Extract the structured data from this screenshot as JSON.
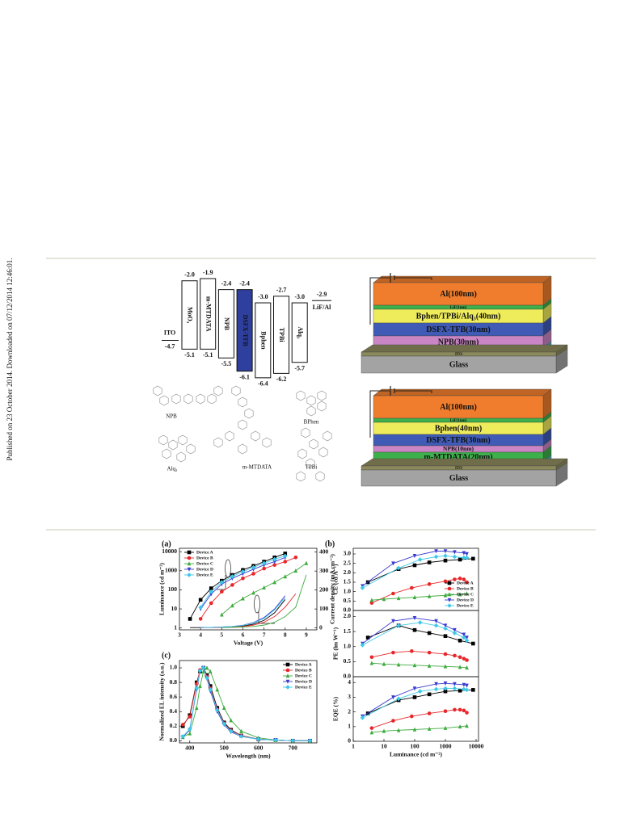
{
  "side_note": "Published on 23 October 2014. Downloaded on 07/12/2014 12:46:01.",
  "figure1": {
    "energy_diagram": {
      "anode": {
        "name": "ITO",
        "level": "-4.7"
      },
      "layers": [
        {
          "name": "MoO₃",
          "lumo": "-2.0",
          "homo": "-5.1"
        },
        {
          "name": "m-MTDATA",
          "lumo": "-1.9",
          "homo": "-5.1"
        },
        {
          "name": "NPB",
          "lumo": "-2.4",
          "homo": "-5.5"
        },
        {
          "name": "DSFX-TFB",
          "lumo": "-2.4",
          "homo": "-6.1",
          "color": "#2e3f9e"
        },
        {
          "name": "Bphen",
          "lumo": "-3.0",
          "homo": "-6.4"
        },
        {
          "name": "TPBi",
          "lumo": "-2.7",
          "homo": "-6.2"
        },
        {
          "name": "Alq₃",
          "lumo": "-3.0",
          "homo": "-5.7"
        }
      ],
      "cathode": {
        "name": "LiF/Al",
        "level": "-2.9"
      }
    },
    "devices": [
      {
        "layers": [
          {
            "label": "Al(100nm)",
            "color": "#ef7d2d"
          },
          {
            "label": "LiF(1nm)",
            "color": "#3cb04a"
          },
          {
            "label": "Bphen/TPBi/Alq₃(40nm)",
            "color": "#efec5c"
          },
          {
            "label": "DSFX-TFB(30nm)",
            "color": "#3f5bb5"
          },
          {
            "label": "NPB(30nm)",
            "color": "#c985c4"
          },
          {
            "label": "MoO₃(2nm)",
            "color": "#45c0e6"
          },
          {
            "label": "ITO",
            "color": "#8c8a5c"
          },
          {
            "label": "Glass",
            "color": "#a3a3a3"
          }
        ]
      },
      {
        "layers": [
          {
            "label": "Al(100nm)",
            "color": "#ef7d2d"
          },
          {
            "label": "LiF(1nm)",
            "color": "#3cb04a"
          },
          {
            "label": "Bphen(40nm)",
            "color": "#efec5c"
          },
          {
            "label": "DSFX-TFB(30nm)",
            "color": "#3f5bb5"
          },
          {
            "label": "NPB(10nm)",
            "color": "#c985c4"
          },
          {
            "label": "m-MTDATA(20nm)",
            "color": "#3cb04a"
          },
          {
            "label": "MoO₃(2nm)",
            "color": "#45c0e6"
          },
          {
            "label": "ITO",
            "color": "#8c8a5c"
          },
          {
            "label": "Glass",
            "color": "#a3a3a3"
          }
        ]
      }
    ],
    "molecules": [
      "NPB",
      "BPhen",
      "m-MTDATA",
      "Alq₃",
      "TPBi"
    ]
  },
  "chart_data": [
    {
      "type": "line",
      "panel": "(a)",
      "xlabel": "Voltage (V)",
      "ylabel": "Luminance (cd m⁻²)",
      "y2label": "Current density (mA cm⁻²)",
      "xlim": [
        3,
        9.5
      ],
      "xticks": [
        3,
        4,
        5,
        6,
        7,
        8,
        9
      ],
      "ylim": [
        0.8,
        15000
      ],
      "ylog": true,
      "yticks": [
        1,
        10,
        100,
        1000,
        10000
      ],
      "y2lim": [
        -10,
        420
      ],
      "y2ticks": [
        0,
        100,
        200,
        300,
        400
      ],
      "legend": "upper left",
      "x": [
        3.5,
        4,
        4.5,
        5,
        5.5,
        6,
        6.5,
        7,
        7.5,
        8,
        8.5,
        9
      ],
      "series": [
        {
          "name": "Device A",
          "color": "#000000",
          "marker": "square",
          "values": [
            3,
            30,
            120,
            300,
            600,
            1100,
            1800,
            3000,
            5000,
            8000,
            null,
            null
          ]
        },
        {
          "name": "Device B",
          "color": "#e8262a",
          "marker": "circle",
          "values": [
            null,
            3,
            20,
            80,
            180,
            400,
            700,
            1300,
            2000,
            3000,
            5000,
            null
          ]
        },
        {
          "name": "Device C",
          "color": "#3dab3d",
          "marker": "triangle-up",
          "values": [
            null,
            null,
            null,
            5,
            15,
            35,
            70,
            130,
            250,
            500,
            1000,
            2500
          ]
        },
        {
          "name": "Device D",
          "color": "#3b3bd0",
          "marker": "triangle-down",
          "values": [
            null,
            10,
            60,
            200,
            400,
            700,
            1200,
            2000,
            3000,
            5000,
            null,
            null
          ]
        },
        {
          "name": "Device E",
          "color": "#3ec8e8",
          "marker": "diamond",
          "values": [
            null,
            12,
            80,
            250,
            500,
            900,
            1500,
            2500,
            4000,
            6000,
            null,
            null
          ]
        },
        {
          "name": "Device A",
          "color": "#000000",
          "axis": "y2",
          "values": [
            2,
            2,
            3,
            4,
            6,
            10,
            20,
            40,
            80,
            150,
            null,
            null
          ]
        },
        {
          "name": "Device B",
          "color": "#e8262a",
          "axis": "y2",
          "values": [
            null,
            2,
            2,
            3,
            5,
            8,
            15,
            30,
            60,
            110,
            180,
            null
          ]
        },
        {
          "name": "Device C",
          "color": "#3dab3d",
          "axis": "y2",
          "values": [
            null,
            null,
            null,
            2,
            3,
            5,
            8,
            15,
            30,
            60,
            110,
            280
          ]
        },
        {
          "name": "Device D",
          "color": "#3b3bd0",
          "axis": "y2",
          "values": [
            null,
            2,
            3,
            5,
            8,
            14,
            28,
            55,
            100,
            170,
            null,
            null
          ]
        },
        {
          "name": "Device E",
          "color": "#3ec8e8",
          "axis": "y2",
          "values": [
            null,
            2,
            3,
            5,
            8,
            13,
            26,
            50,
            95,
            160,
            null,
            null
          ]
        }
      ]
    },
    {
      "type": "line",
      "panel": "(b)",
      "ylabel": "CE (cd A⁻¹)",
      "xlog": true,
      "xlim": [
        1,
        12000
      ],
      "ylim": [
        0,
        3.3
      ],
      "yticks": [
        {
          "value": 0,
          "label": "0.0"
        },
        {
          "value": 0.5,
          "label": "0.5"
        },
        {
          "value": 1,
          "label": "1.0"
        },
        {
          "value": 1.5,
          "label": "1.5"
        },
        {
          "value": 2,
          "label": "2.0"
        },
        {
          "value": 2.5,
          "label": "2.5"
        },
        {
          "value": 3,
          "label": "3.0"
        }
      ],
      "legend": "lower right",
      "series": [
        {
          "name": "Device A",
          "color": "#000000",
          "marker": "square",
          "x": [
            3,
            30,
            100,
            300,
            1000,
            3000,
            8000
          ],
          "values": [
            1.5,
            2.2,
            2.4,
            2.55,
            2.65,
            2.7,
            2.75
          ]
        },
        {
          "name": "Device B",
          "color": "#e8262a",
          "marker": "circle",
          "x": [
            4,
            20,
            80,
            300,
            1000,
            2000,
            3000,
            4000,
            5000
          ],
          "values": [
            0.4,
            0.9,
            1.2,
            1.4,
            1.55,
            1.65,
            1.7,
            1.65,
            1.5
          ]
        },
        {
          "name": "Device C",
          "color": "#3dab3d",
          "marker": "triangle-up",
          "x": [
            4,
            10,
            30,
            100,
            300,
            1000,
            3000,
            5000
          ],
          "values": [
            0.55,
            0.6,
            0.65,
            0.7,
            0.75,
            0.8,
            0.85,
            0.9
          ]
        },
        {
          "name": "Device D",
          "color": "#3b3bd0",
          "marker": "triangle-down",
          "x": [
            2,
            20,
            100,
            500,
            1000,
            2000,
            4000,
            5000
          ],
          "values": [
            1.3,
            2.5,
            2.9,
            3.15,
            3.15,
            3.1,
            3.05,
            3.0
          ]
        },
        {
          "name": "Device E",
          "color": "#3ec8e8",
          "marker": "diamond",
          "x": [
            2,
            30,
            150,
            500,
            1000,
            2000,
            4000,
            5000
          ],
          "values": [
            1.2,
            2.25,
            2.7,
            2.85,
            2.9,
            2.85,
            2.8,
            2.8
          ]
        }
      ]
    },
    {
      "type": "line",
      "ylabel": "PE (lm W⁻¹)",
      "xlog": true,
      "xlim": [
        1,
        12000
      ],
      "ylim": [
        0,
        2.2
      ],
      "yticks": [
        {
          "value": 0,
          "label": "0.0"
        },
        {
          "value": 0.5,
          "label": "0.5"
        },
        {
          "value": 1,
          "label": "1.0"
        },
        {
          "value": 1.5,
          "label": "1.5"
        },
        {
          "value": 2,
          "label": "2.0"
        }
      ],
      "series": [
        {
          "name": "Device A",
          "color": "#000000",
          "marker": "square",
          "x": [
            3,
            30,
            100,
            300,
            1000,
            3000,
            8000
          ],
          "values": [
            1.3,
            1.7,
            1.55,
            1.45,
            1.35,
            1.2,
            1.1
          ]
        },
        {
          "name": "Device B",
          "color": "#e8262a",
          "marker": "circle",
          "x": [
            4,
            20,
            80,
            300,
            1000,
            2000,
            3000,
            4000,
            5000
          ],
          "values": [
            0.65,
            0.8,
            0.85,
            0.8,
            0.75,
            0.7,
            0.65,
            0.6,
            0.55
          ]
        },
        {
          "name": "Device C",
          "color": "#3dab3d",
          "marker": "triangle-up",
          "x": [
            4,
            10,
            30,
            100,
            300,
            1000,
            3000,
            5000
          ],
          "values": [
            0.45,
            0.42,
            0.4,
            0.38,
            0.36,
            0.34,
            0.32,
            0.3
          ]
        },
        {
          "name": "Device D",
          "color": "#3b3bd0",
          "marker": "triangle-down",
          "x": [
            2,
            20,
            100,
            500,
            1000,
            2000,
            4000,
            5000
          ],
          "values": [
            1.1,
            1.85,
            1.95,
            1.85,
            1.7,
            1.55,
            1.4,
            1.3
          ]
        },
        {
          "name": "Device E",
          "color": "#3ec8e8",
          "marker": "diamond",
          "x": [
            2,
            30,
            150,
            500,
            1000,
            2000,
            4000,
            5000
          ],
          "values": [
            1.05,
            1.7,
            1.8,
            1.7,
            1.6,
            1.45,
            1.3,
            1.2
          ]
        }
      ]
    },
    {
      "type": "line",
      "ylabel": "EQE (%)",
      "xlabel": "Luminance (cd m⁻²)",
      "xlog": true,
      "xlim": [
        1,
        12000
      ],
      "xticks": [
        1,
        10,
        100,
        1000,
        10000
      ],
      "ylim": [
        0,
        4.4
      ],
      "yticks": [
        0,
        1,
        2,
        3,
        4
      ],
      "series": [
        {
          "name": "Device A",
          "color": "#000000",
          "marker": "square",
          "x": [
            3,
            30,
            100,
            300,
            1000,
            3000,
            8000
          ],
          "values": [
            1.9,
            2.8,
            3.0,
            3.2,
            3.4,
            3.45,
            3.5
          ]
        },
        {
          "name": "Device B",
          "color": "#e8262a",
          "marker": "circle",
          "x": [
            4,
            20,
            80,
            300,
            1000,
            2000,
            3000,
            4000,
            5000
          ],
          "values": [
            0.9,
            1.4,
            1.7,
            1.9,
            2.05,
            2.15,
            2.15,
            2.1,
            1.95
          ]
        },
        {
          "name": "Device C",
          "color": "#3dab3d",
          "marker": "triangle-up",
          "x": [
            4,
            10,
            30,
            100,
            300,
            1000,
            3000,
            5000
          ],
          "values": [
            0.6,
            0.7,
            0.75,
            0.8,
            0.85,
            0.9,
            1.0,
            1.05
          ]
        },
        {
          "name": "Device D",
          "color": "#3b3bd0",
          "marker": "triangle-down",
          "x": [
            2,
            20,
            100,
            500,
            1000,
            2000,
            4000,
            5000
          ],
          "values": [
            1.7,
            3.0,
            3.6,
            3.9,
            3.95,
            3.9,
            3.85,
            3.8
          ]
        },
        {
          "name": "Device E",
          "color": "#3ec8e8",
          "marker": "diamond",
          "x": [
            2,
            30,
            150,
            500,
            1000,
            2000,
            4000,
            5000
          ],
          "values": [
            1.6,
            2.9,
            3.4,
            3.55,
            3.6,
            3.6,
            3.55,
            3.5
          ]
        }
      ]
    },
    {
      "type": "line",
      "panel": "(c)",
      "xlabel": "Wavelength (nm)",
      "ylabel": "Normalized EL intensity (a.u.)",
      "xlim": [
        370,
        770
      ],
      "xticks": [
        400,
        500,
        600,
        700
      ],
      "ylim": [
        -0.03,
        1.1
      ],
      "yticks": [
        {
          "value": 0,
          "label": "0.0"
        },
        {
          "value": 0.2,
          "label": "0.2"
        },
        {
          "value": 0.4,
          "label": "0.4"
        },
        {
          "value": 0.6,
          "label": "0.6"
        },
        {
          "value": 0.8,
          "label": "0.8"
        },
        {
          "value": 1,
          "label": "1.0"
        }
      ],
      "legend": "upper right",
      "x": [
        380,
        400,
        420,
        430,
        440,
        450,
        460,
        480,
        500,
        520,
        550,
        600,
        650,
        700,
        750
      ],
      "series": [
        {
          "name": "Device A",
          "color": "#000000",
          "marker": "square",
          "values": [
            0.2,
            0.35,
            0.8,
            0.95,
            1.0,
            0.9,
            0.75,
            0.45,
            0.25,
            0.15,
            0.07,
            0.02,
            0.01,
            0,
            0
          ]
        },
        {
          "name": "Device B",
          "color": "#e8262a",
          "marker": "circle",
          "values": [
            0.22,
            0.33,
            0.78,
            0.97,
            1.0,
            0.88,
            0.72,
            0.43,
            0.24,
            0.14,
            0.07,
            0.02,
            0.01,
            0,
            0
          ]
        },
        {
          "name": "Device C",
          "color": "#3dab3d",
          "marker": "triangle-up",
          "values": [
            0.05,
            0.1,
            0.45,
            0.75,
            0.95,
            1.0,
            0.95,
            0.7,
            0.45,
            0.28,
            0.13,
            0.04,
            0.01,
            0,
            0
          ]
        },
        {
          "name": "Device D",
          "color": "#3b3bd0",
          "marker": "triangle-down",
          "values": [
            0.05,
            0.15,
            0.7,
            0.95,
            1.0,
            0.85,
            0.68,
            0.4,
            0.22,
            0.12,
            0.06,
            0.02,
            0.01,
            0,
            0
          ]
        },
        {
          "name": "Device E",
          "color": "#3ec8e8",
          "marker": "diamond",
          "values": [
            0.06,
            0.16,
            0.72,
            0.96,
            1.0,
            0.86,
            0.7,
            0.42,
            0.23,
            0.13,
            0.06,
            0.02,
            0.01,
            0,
            0
          ]
        }
      ]
    }
  ]
}
